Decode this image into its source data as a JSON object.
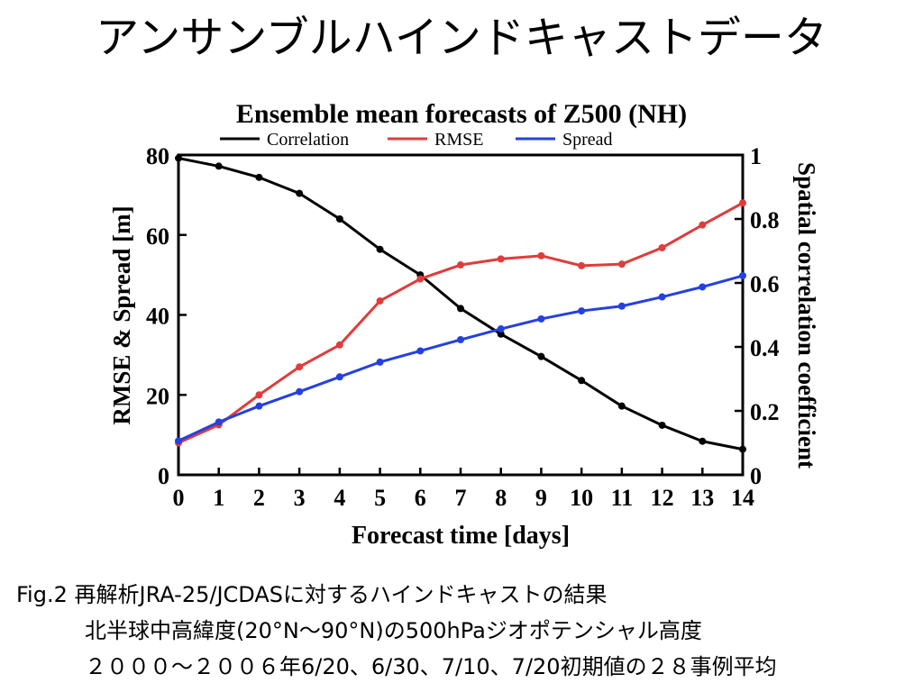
{
  "slide": {
    "title": "アンサンブルハインドキャストデータ"
  },
  "caption": {
    "line1": "Fig.2 再解析JRA-25/JCDASに対するハインドキャストの結果",
    "line2": "北半球中高緯度(20°N～90°N)の500hPaジオポテンシャル高度",
    "line3": "２０００～２００６年6/20、6/30、7/10、7/20初期値の２８事例平均"
  },
  "chart_data": {
    "type": "line",
    "title": "Ensemble mean forecasts of Z500 (NH)",
    "xlabel": "Forecast time [days]",
    "ylabel": "RMSE & Spread [m]",
    "y2label": "Spatial correlation coefficient",
    "x": [
      0,
      1,
      2,
      3,
      4,
      5,
      6,
      7,
      8,
      9,
      10,
      11,
      12,
      13,
      14
    ],
    "xlim": [
      0,
      14
    ],
    "ylim": [
      0,
      80
    ],
    "y2lim": [
      0,
      1
    ],
    "yticks": [
      0,
      20,
      40,
      60,
      80
    ],
    "y2ticks": [
      "0",
      "0.2",
      "0.4",
      "0.6",
      "0.8",
      "1"
    ],
    "legend_position": "top",
    "series": [
      {
        "name": "Correlation",
        "axis": "right",
        "color": "#000000",
        "values": [
          0.99,
          0.965,
          0.93,
          0.88,
          0.8,
          0.705,
          0.625,
          0.52,
          0.44,
          0.37,
          0.295,
          0.215,
          0.155,
          0.105,
          0.08
        ]
      },
      {
        "name": "RMSE",
        "axis": "left",
        "color": "#e03c3c",
        "values": [
          8,
          12.5,
          20,
          27,
          32.5,
          43.5,
          49,
          52.5,
          54,
          54.8,
          52.3,
          52.7,
          56.8,
          62.5,
          68
        ]
      },
      {
        "name": "Spread",
        "axis": "left",
        "color": "#2540e0",
        "values": [
          8.5,
          13.2,
          17.2,
          20.8,
          24.5,
          28.2,
          31,
          33.8,
          36.5,
          39,
          41,
          42.2,
          44.5,
          47,
          49.8
        ]
      }
    ]
  }
}
